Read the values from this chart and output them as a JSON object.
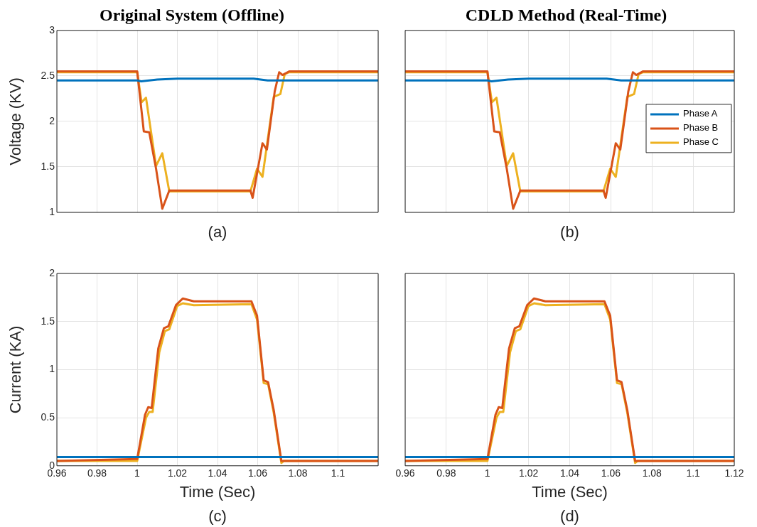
{
  "chart_data": [
    {
      "type": "line",
      "title": "Original System (Offline)",
      "ylabel": "Voltage (KV)",
      "annotations": [
        "(a)"
      ],
      "xlim": [
        0.96,
        1.12
      ],
      "xticks": [
        0.96,
        0.98,
        1,
        1.02,
        1.04,
        1.06,
        1.08,
        1.1,
        1.12
      ],
      "ylim": [
        1,
        3
      ],
      "yticks": [
        1,
        1.5,
        2,
        2.5,
        3
      ],
      "grid": true,
      "tick_labels": "y",
      "legend": false,
      "marker": "none",
      "line_style": "solid",
      "series": [
        {
          "color": "#0072bd",
          "x": [
            0.96,
            1.0,
            1.002,
            1.01,
            1.02,
            1.05,
            1.058,
            1.065,
            1.12
          ],
          "values": [
            2.45,
            2.45,
            2.44,
            2.46,
            2.47,
            2.47,
            2.47,
            2.45,
            2.45
          ]
        },
        {
          "color": "#d95319",
          "x": [
            0.96,
            1.0,
            1.0033,
            1.006,
            1.0094,
            1.0125,
            1.016,
            1.0564,
            1.0575,
            1.0597,
            1.0624,
            1.0646,
            1.0685,
            1.0707,
            1.0724,
            1.0757,
            1.12
          ],
          "values": [
            2.55,
            2.55,
            1.89,
            1.88,
            1.48,
            1.04,
            1.24,
            1.24,
            1.16,
            1.43,
            1.76,
            1.69,
            2.33,
            2.54,
            2.51,
            2.55,
            2.55
          ]
        },
        {
          "color": "#edb120",
          "x": [
            0.96,
            1.0,
            1.0022,
            1.0044,
            1.0094,
            1.0125,
            1.016,
            1.0564,
            1.0597,
            1.0624,
            1.068,
            1.0713,
            1.0735,
            1.0757,
            1.12
          ],
          "values": [
            2.54,
            2.54,
            2.21,
            2.26,
            1.51,
            1.65,
            1.23,
            1.23,
            1.48,
            1.39,
            2.27,
            2.3,
            2.52,
            2.54,
            2.54
          ]
        }
      ]
    },
    {
      "type": "line",
      "title": "CDLD Method (Real-Time)",
      "annotations": [
        "(b)"
      ],
      "xlim": [
        0.96,
        1.12
      ],
      "xticks": [
        0.96,
        0.98,
        1,
        1.02,
        1.04,
        1.06,
        1.08,
        1.1,
        1.12
      ],
      "ylim": [
        1,
        3
      ],
      "yticks": [
        1,
        1.5,
        2,
        2.5,
        3
      ],
      "grid": true,
      "tick_labels": false,
      "legend": "right",
      "marker": "none",
      "line_style": "solid",
      "series": [
        {
          "name": "Phase A",
          "color": "#0072bd",
          "x": [
            0.96,
            1.0,
            1.002,
            1.01,
            1.02,
            1.05,
            1.058,
            1.065,
            1.12
          ],
          "values": [
            2.45,
            2.45,
            2.44,
            2.46,
            2.47,
            2.47,
            2.47,
            2.45,
            2.45
          ]
        },
        {
          "name": "Phase B",
          "color": "#d95319",
          "x": [
            0.96,
            1.0,
            1.0033,
            1.006,
            1.0094,
            1.0125,
            1.016,
            1.0564,
            1.0575,
            1.0597,
            1.0624,
            1.0646,
            1.0685,
            1.0707,
            1.0724,
            1.0757,
            1.12
          ],
          "values": [
            2.55,
            2.55,
            1.89,
            1.88,
            1.48,
            1.04,
            1.24,
            1.24,
            1.16,
            1.43,
            1.76,
            1.69,
            2.33,
            2.54,
            2.51,
            2.55,
            2.55
          ]
        },
        {
          "name": "Phase C",
          "color": "#edb120",
          "x": [
            0.96,
            1.0,
            1.0022,
            1.0044,
            1.0094,
            1.0125,
            1.016,
            1.0564,
            1.0597,
            1.0624,
            1.068,
            1.0713,
            1.0735,
            1.0757,
            1.12
          ],
          "values": [
            2.54,
            2.54,
            2.21,
            2.26,
            1.51,
            1.65,
            1.23,
            1.23,
            1.48,
            1.39,
            2.27,
            2.3,
            2.52,
            2.54,
            2.54
          ]
        }
      ]
    },
    {
      "type": "line",
      "xlabel": "Time (Sec)",
      "ylabel": "Current (KA)",
      "annotations": [
        "(c)"
      ],
      "xlim": [
        0.96,
        1.12
      ],
      "xticks": [
        0.96,
        0.98,
        1,
        1.02,
        1.04,
        1.06,
        1.08,
        1.1,
        {
          "value": 1.12,
          "label": null
        }
      ],
      "ylim": [
        0,
        2
      ],
      "yticks": [
        0,
        0.5,
        1,
        1.5,
        2
      ],
      "grid": true,
      "legend": false,
      "marker": "none",
      "line_style": "solid",
      "series": [
        {
          "color": "#0072bd",
          "x": [
            0.96,
            1.12
          ],
          "values": [
            0.09,
            0.09
          ]
        },
        {
          "color": "#d95319",
          "x": [
            0.96,
            1.0,
            1.0039,
            1.0055,
            1.0072,
            1.0105,
            1.0133,
            1.0155,
            1.0193,
            1.0227,
            1.0282,
            1.0569,
            1.0597,
            1.063,
            1.0652,
            1.068,
            1.0718,
            1.12
          ],
          "values": [
            0.05,
            0.07,
            0.53,
            0.61,
            0.6,
            1.22,
            1.43,
            1.45,
            1.67,
            1.74,
            1.71,
            1.71,
            1.56,
            0.89,
            0.87,
            0.58,
            0.05,
            0.05
          ]
        },
        {
          "color": "#edb120",
          "x": [
            0.96,
            1.0,
            1.0044,
            1.006,
            1.0077,
            1.011,
            1.0138,
            1.016,
            1.0199,
            1.0227,
            1.0282,
            1.0569,
            1.0597,
            1.063,
            1.0652,
            1.068,
            1.0718,
            1.073,
            1.12
          ],
          "values": [
            0.05,
            0.05,
            0.5,
            0.56,
            0.56,
            1.18,
            1.4,
            1.42,
            1.66,
            1.69,
            1.67,
            1.68,
            1.52,
            0.86,
            0.85,
            0.55,
            0.03,
            0.05,
            0.05
          ]
        }
      ]
    },
    {
      "type": "line",
      "xlabel": "Time (Sec)",
      "annotations": [
        "(d)"
      ],
      "xlim": [
        0.96,
        1.12
      ],
      "xticks": [
        0.96,
        0.98,
        1,
        1.02,
        1.04,
        1.06,
        1.08,
        1.1,
        1.12
      ],
      "ylim": [
        0,
        2
      ],
      "yticks": [
        0,
        0.5,
        1,
        1.5,
        2
      ],
      "grid": true,
      "tick_labels": "x",
      "legend": false,
      "marker": "none",
      "line_style": "solid",
      "series": [
        {
          "color": "#0072bd",
          "x": [
            0.96,
            1.12
          ],
          "values": [
            0.09,
            0.09
          ]
        },
        {
          "color": "#d95319",
          "x": [
            0.96,
            1.0,
            1.0039,
            1.0055,
            1.0072,
            1.0105,
            1.0133,
            1.0155,
            1.0193,
            1.0227,
            1.0282,
            1.0569,
            1.0597,
            1.063,
            1.0652,
            1.068,
            1.0718,
            1.12
          ],
          "values": [
            0.05,
            0.07,
            0.53,
            0.61,
            0.6,
            1.22,
            1.43,
            1.45,
            1.67,
            1.74,
            1.71,
            1.71,
            1.56,
            0.89,
            0.87,
            0.58,
            0.05,
            0.05
          ]
        },
        {
          "color": "#edb120",
          "x": [
            0.96,
            1.0,
            1.0044,
            1.006,
            1.0077,
            1.011,
            1.0138,
            1.016,
            1.0199,
            1.0227,
            1.0282,
            1.0569,
            1.0597,
            1.063,
            1.0652,
            1.068,
            1.0718,
            1.073,
            1.12
          ],
          "values": [
            0.05,
            0.05,
            0.5,
            0.56,
            0.56,
            1.18,
            1.4,
            1.42,
            1.66,
            1.69,
            1.67,
            1.68,
            1.52,
            0.86,
            0.85,
            0.55,
            0.03,
            0.05,
            0.05
          ]
        }
      ]
    }
  ]
}
